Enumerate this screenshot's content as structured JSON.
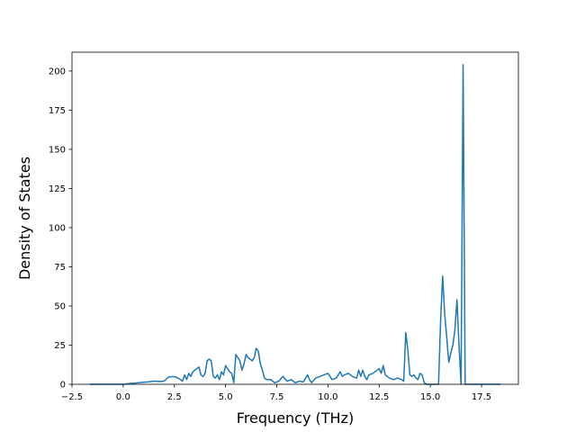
{
  "chart_data": {
    "type": "line",
    "title": "",
    "xlabel": "Frequency (THz)",
    "ylabel": "Density of States",
    "xlim": [
      -2.5,
      19.3
    ],
    "ylim": [
      0,
      212
    ],
    "grid": false,
    "legend": "none",
    "xticks": [
      {
        "value": -2.5,
        "label": "−2.5"
      },
      {
        "value": 0,
        "label": "0.0"
      },
      {
        "value": 2.5,
        "label": "2.5"
      },
      {
        "value": 5,
        "label": "5.0"
      },
      {
        "value": 7.5,
        "label": "7.5"
      },
      {
        "value": 10,
        "label": "10.0"
      },
      {
        "value": 12.5,
        "label": "12.5"
      },
      {
        "value": 15,
        "label": "15.0"
      },
      {
        "value": 17.5,
        "label": "17.5"
      }
    ],
    "yticks": [
      {
        "value": 0,
        "label": "0"
      },
      {
        "value": 25,
        "label": "25"
      },
      {
        "value": 50,
        "label": "50"
      },
      {
        "value": 75,
        "label": "75"
      },
      {
        "value": 100,
        "label": "100"
      },
      {
        "value": 125,
        "label": "125"
      },
      {
        "value": 150,
        "label": "150"
      },
      {
        "value": 175,
        "label": "175"
      },
      {
        "value": 200,
        "label": "200"
      }
    ],
    "series": [
      {
        "color": "#1f77b4",
        "x": [
          -1.6,
          -1.2,
          -0.8,
          -0.4,
          0.0,
          0.3,
          0.6,
          0.9,
          1.2,
          1.5,
          1.8,
          2.0,
          2.2,
          2.4,
          2.6,
          2.8,
          2.9,
          3.0,
          3.1,
          3.2,
          3.3,
          3.4,
          3.5,
          3.6,
          3.7,
          3.8,
          3.9,
          4.0,
          4.1,
          4.2,
          4.3,
          4.4,
          4.5,
          4.6,
          4.7,
          4.8,
          4.9,
          5.0,
          5.1,
          5.2,
          5.3,
          5.4,
          5.5,
          5.6,
          5.7,
          5.8,
          5.9,
          6.0,
          6.1,
          6.2,
          6.3,
          6.4,
          6.5,
          6.6,
          6.7,
          6.8,
          6.9,
          7.0,
          7.2,
          7.4,
          7.6,
          7.8,
          8.0,
          8.2,
          8.4,
          8.6,
          8.8,
          9.0,
          9.1,
          9.2,
          9.4,
          9.6,
          9.8,
          10.0,
          10.2,
          10.4,
          10.6,
          10.7,
          10.8,
          11.0,
          11.2,
          11.4,
          11.5,
          11.6,
          11.7,
          11.8,
          11.9,
          12.0,
          12.2,
          12.4,
          12.5,
          12.6,
          12.7,
          12.8,
          12.9,
          13.0,
          13.2,
          13.4,
          13.6,
          13.7,
          13.8,
          13.9,
          14.0,
          14.1,
          14.2,
          14.3,
          14.4,
          14.5,
          14.6,
          14.7,
          14.8,
          15.0,
          15.2,
          15.4,
          15.5,
          15.6,
          15.7,
          15.8,
          15.9,
          16.0,
          16.1,
          16.2,
          16.3,
          16.4,
          16.5,
          16.6,
          16.7,
          16.8,
          16.9,
          17.0,
          17.3,
          17.6,
          17.9,
          18.2,
          18.4
        ],
        "y": [
          0,
          0,
          0,
          0,
          0,
          0.5,
          0.8,
          1.2,
          1.5,
          2.0,
          1.8,
          2.0,
          4.5,
          5.0,
          4.5,
          3.0,
          2.0,
          6.0,
          3.0,
          7.0,
          5.0,
          8.0,
          9.0,
          10.0,
          11.0,
          6.0,
          5.0,
          7.0,
          15.0,
          16.0,
          15.0,
          5.0,
          4.0,
          6.0,
          3.0,
          8.0,
          6.0,
          12.0,
          10.0,
          8.0,
          7.0,
          1.0,
          19.0,
          17.0,
          15.0,
          9.0,
          13.0,
          19.0,
          17.0,
          16.0,
          15.0,
          17.0,
          23.0,
          21.0,
          13.0,
          9.0,
          4.0,
          3.0,
          3.0,
          1.0,
          2.0,
          5.0,
          2.0,
          3.0,
          1.0,
          2.0,
          1.5,
          6.0,
          3.0,
          1.0,
          4.0,
          5.0,
          6.0,
          7.0,
          3.0,
          4.0,
          8.0,
          5.0,
          6.0,
          7.0,
          5.0,
          4.0,
          9.0,
          5.0,
          9.0,
          5.0,
          3.0,
          6.0,
          7.0,
          9.0,
          10.0,
          7.0,
          12.0,
          6.0,
          5.0,
          4.0,
          3.0,
          4.0,
          3.0,
          2.0,
          33.0,
          22.0,
          6.0,
          5.0,
          6.0,
          4.0,
          3.0,
          7.0,
          6.0,
          1.0,
          0,
          0,
          0,
          0,
          40.0,
          69.0,
          45.0,
          30.0,
          14.0,
          20.0,
          25.0,
          35.0,
          54.0,
          25.0,
          0,
          204.0,
          0,
          0,
          0,
          0,
          0,
          0,
          0,
          0,
          0
        ]
      }
    ]
  }
}
